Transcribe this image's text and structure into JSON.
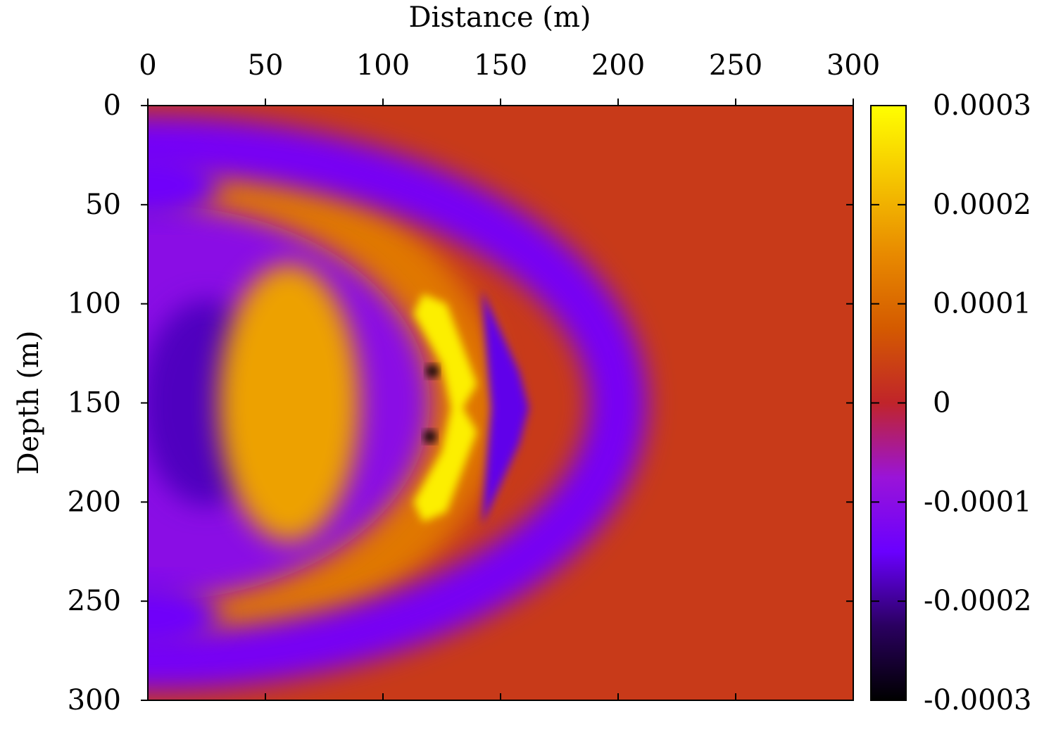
{
  "chart_data": {
    "type": "heatmap",
    "xlabel": "Distance (m)",
    "ylabel": "Depth (m)",
    "xlim": [
      0,
      300
    ],
    "ylim": [
      300,
      0
    ],
    "x_axis_position": "top",
    "y_axis_inverted": true,
    "x_ticks": [
      "0",
      "50",
      "100",
      "150",
      "200",
      "250",
      "300"
    ],
    "y_ticks": [
      "0",
      "50",
      "100",
      "150",
      "200",
      "250",
      "300"
    ],
    "grid": false,
    "colorbar": {
      "position": "right",
      "range": [
        -0.0003,
        0.0003
      ],
      "tick_labels": [
        "0.0003",
        "0.0002",
        "0.0001",
        "0",
        "-0.0001",
        "-0.0002",
        "-0.0003"
      ],
      "colormap": [
        "#000000",
        "#2a0060",
        "#6a00ff",
        "#9a14d8",
        "#c0242a",
        "#d45a00",
        "#e88a00",
        "#f5c400",
        "#ffff00"
      ]
    },
    "features": [
      {
        "kind": "background",
        "value": 3e-05
      },
      {
        "kind": "wavefront",
        "cx": 0,
        "cy": 150,
        "rx": 150,
        "ry": 130,
        "value": 0.00012
      },
      {
        "kind": "wavefront",
        "cx": 0,
        "cy": 150,
        "rx": 120,
        "ry": 100,
        "value": -0.0001
      },
      {
        "kind": "ring",
        "cx": 0,
        "cy": 150,
        "rx": 200,
        "ry": 130,
        "width": 25,
        "value": -0.00013
      },
      {
        "kind": "lobe",
        "cx": 25,
        "cy": 150,
        "rx": 28,
        "ry": 52,
        "value": -0.00018
      },
      {
        "kind": "lobe",
        "cx": 60,
        "cy": 150,
        "rx": 30,
        "ry": 70,
        "value": 0.00018
      },
      {
        "kind": "lobe",
        "cx": 0,
        "cy": 40,
        "rx": 30,
        "ry": 18,
        "value": -0.00014
      },
      {
        "kind": "lobe",
        "cx": 0,
        "cy": 258,
        "rx": 30,
        "ry": 18,
        "value": -0.00014
      },
      {
        "kind": "diffractor",
        "x": [
          115,
          140
        ],
        "y": [
          95,
          210
        ],
        "value": 0.00028
      },
      {
        "kind": "point",
        "x": 121,
        "y": 134,
        "value": -0.0003
      },
      {
        "kind": "point",
        "x": 120,
        "y": 167,
        "value": -0.0003
      }
    ]
  }
}
